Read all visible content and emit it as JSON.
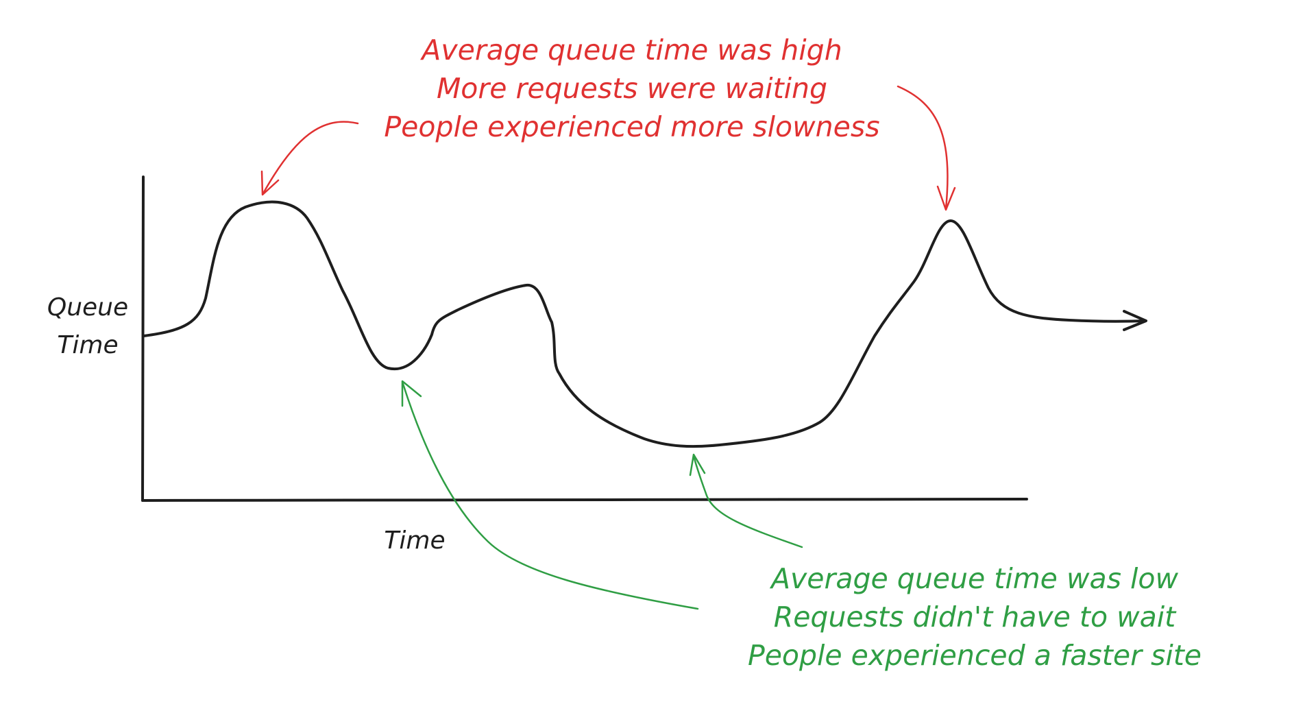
{
  "axes": {
    "y_label_line1": "Queue",
    "y_label_line2": "Time",
    "x_label": "Time"
  },
  "annotations": {
    "high": {
      "color": "#e03131",
      "lines": [
        "Average queue time was high",
        "More requests were waiting",
        "People experienced more slowness"
      ]
    },
    "low": {
      "color": "#2f9e44",
      "lines": [
        "Average queue time was low",
        "Requests didn't have to wait",
        "People experienced a faster site"
      ]
    }
  },
  "colors": {
    "ink": "#1e1e1e",
    "background": "#ffffff"
  }
}
